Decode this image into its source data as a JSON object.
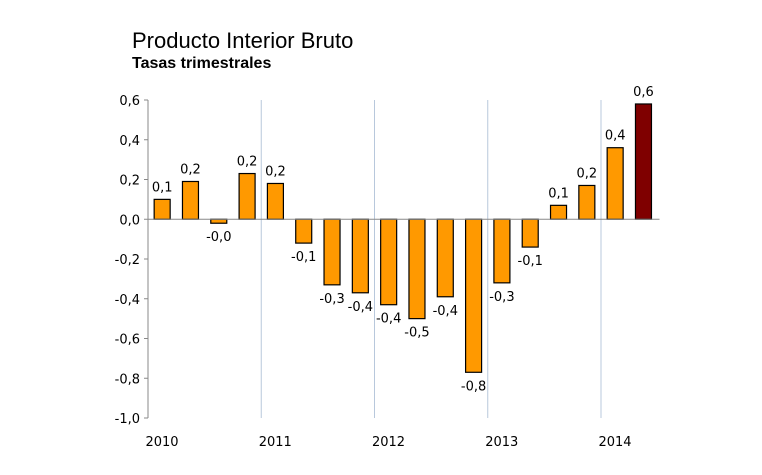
{
  "chart_data": {
    "type": "bar",
    "title": "Producto Interior Bruto",
    "subtitle": "Tasas trimestrales",
    "xlabel": "",
    "ylabel": "",
    "ylim": [
      -1.0,
      0.6
    ],
    "yticks": [
      "0,6",
      "0,4",
      "0,2",
      "0,0",
      "-0,2",
      "-0,4",
      "-0,6",
      "-0,8",
      "-1,0"
    ],
    "ytick_values": [
      0.6,
      0.4,
      0.2,
      0.0,
      -0.2,
      -0.4,
      -0.6,
      -0.8,
      -1.0
    ],
    "year_labels": [
      "2010",
      "2011",
      "2012",
      "2013",
      "2014"
    ],
    "grid": "vertical lines at year boundaries",
    "values": [
      0.1,
      0.19,
      -0.02,
      0.23,
      0.18,
      -0.12,
      -0.33,
      -0.37,
      -0.43,
      -0.5,
      -0.39,
      -0.77,
      -0.32,
      -0.14,
      0.07,
      0.17,
      0.36,
      0.58
    ],
    "data_labels": [
      "0,1",
      "0,2",
      "-0,0",
      "0,2",
      "0,2",
      "-0,1",
      "-0,3",
      "-0,4",
      "-0,4",
      "-0,5",
      "-0,4",
      "-0,8",
      "-0,3",
      "-0,1",
      "0,1",
      "0,2",
      "0,4",
      "0,6"
    ],
    "colors": {
      "bar": "#FF9900",
      "highlight": "#7F0000",
      "outline": "#000000",
      "grid": "#B8C8DC"
    }
  }
}
